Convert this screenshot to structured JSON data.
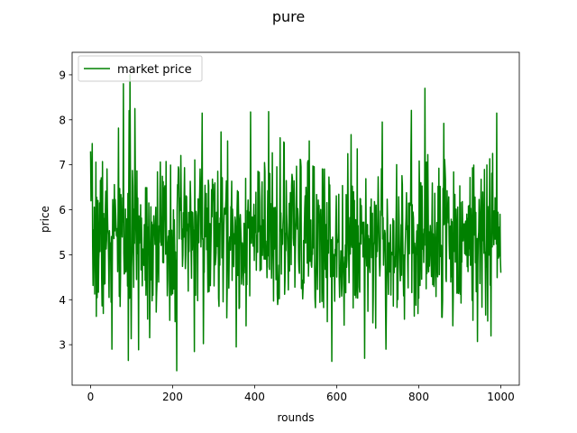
{
  "chart_data": {
    "type": "line",
    "title": "pure",
    "xlabel": "rounds",
    "ylabel": "price",
    "xlim": [
      -45,
      1045
    ],
    "ylim": [
      2.1,
      9.5
    ],
    "xticks": [
      0,
      200,
      400,
      600,
      800,
      1000
    ],
    "yticks": [
      3,
      4,
      5,
      6,
      7,
      8,
      9
    ],
    "grid": false,
    "legend": {
      "placement": "upper-left"
    },
    "series": [
      {
        "name": "market price",
        "color": "#008000",
        "generator": {
          "rounds": 1000,
          "mean": 5.4,
          "stdev": 0.9,
          "seed": 7
        },
        "highlights": [
          {
            "x": 0,
            "y": 7.3
          },
          {
            "x": 45,
            "y": 4.05
          },
          {
            "x": 52,
            "y": 2.9
          },
          {
            "x": 80,
            "y": 8.8
          },
          {
            "x": 92,
            "y": 2.65
          },
          {
            "x": 96,
            "y": 9.0
          },
          {
            "x": 108,
            "y": 8.25
          },
          {
            "x": 210,
            "y": 2.42
          },
          {
            "x": 272,
            "y": 8.15
          },
          {
            "x": 355,
            "y": 2.95
          },
          {
            "x": 588,
            "y": 2.63
          },
          {
            "x": 711,
            "y": 7.95
          },
          {
            "x": 720,
            "y": 2.9
          },
          {
            "x": 815,
            "y": 8.7
          },
          {
            "x": 861,
            "y": 7.92
          },
          {
            "x": 990,
            "y": 8.15
          },
          {
            "x": 1000,
            "y": 4.6
          }
        ]
      }
    ]
  }
}
